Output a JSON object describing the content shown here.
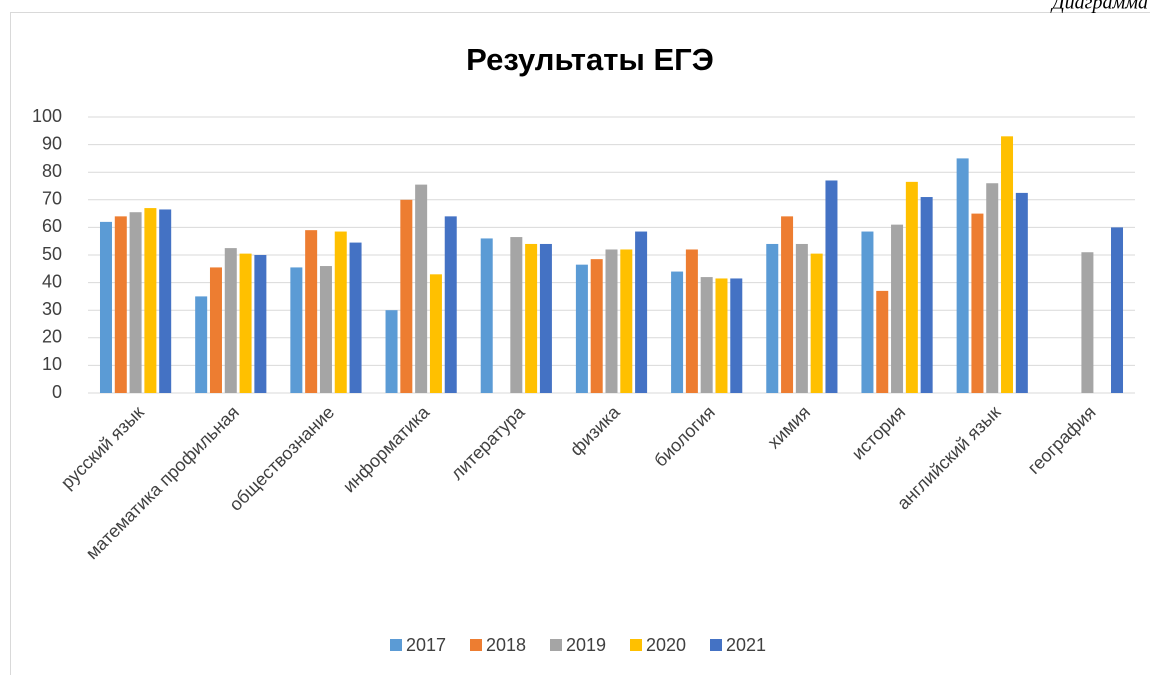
{
  "caption": "Диаграмма",
  "chart_data": {
    "type": "bar",
    "title": "Результаты ЕГЭ",
    "categories": [
      "русский язык",
      "математика профильная",
      "обществознание",
      "информатика",
      "литература",
      "физика",
      "биология",
      "химия",
      "история",
      "английский язык",
      "география"
    ],
    "series": [
      {
        "name": "2017",
        "color": "#5b9bd5",
        "values": [
          62,
          35,
          45.5,
          30,
          56,
          46.5,
          44,
          54,
          58.5,
          85,
          null
        ]
      },
      {
        "name": "2018",
        "color": "#ed7d31",
        "values": [
          64,
          45.5,
          59,
          70,
          null,
          48.5,
          52,
          64,
          37,
          65,
          null
        ]
      },
      {
        "name": "2019",
        "color": "#a5a5a5",
        "values": [
          65.5,
          52.5,
          46,
          75.5,
          56.5,
          52,
          42,
          54,
          61,
          76,
          51
        ]
      },
      {
        "name": "2020",
        "color": "#ffc000",
        "values": [
          67,
          50.5,
          58.5,
          43,
          54,
          52,
          41.5,
          50.5,
          76.5,
          93,
          null
        ]
      },
      {
        "name": "2021",
        "color": "#4472c4",
        "values": [
          66.5,
          50,
          54.5,
          64,
          54,
          58.5,
          41.5,
          77,
          71,
          72.5,
          60
        ]
      }
    ],
    "ylim": [
      0,
      100
    ],
    "yticks": [
      0,
      10,
      20,
      30,
      40,
      50,
      60,
      70,
      80,
      90,
      100
    ],
    "grid": true,
    "legend": "bottom"
  }
}
